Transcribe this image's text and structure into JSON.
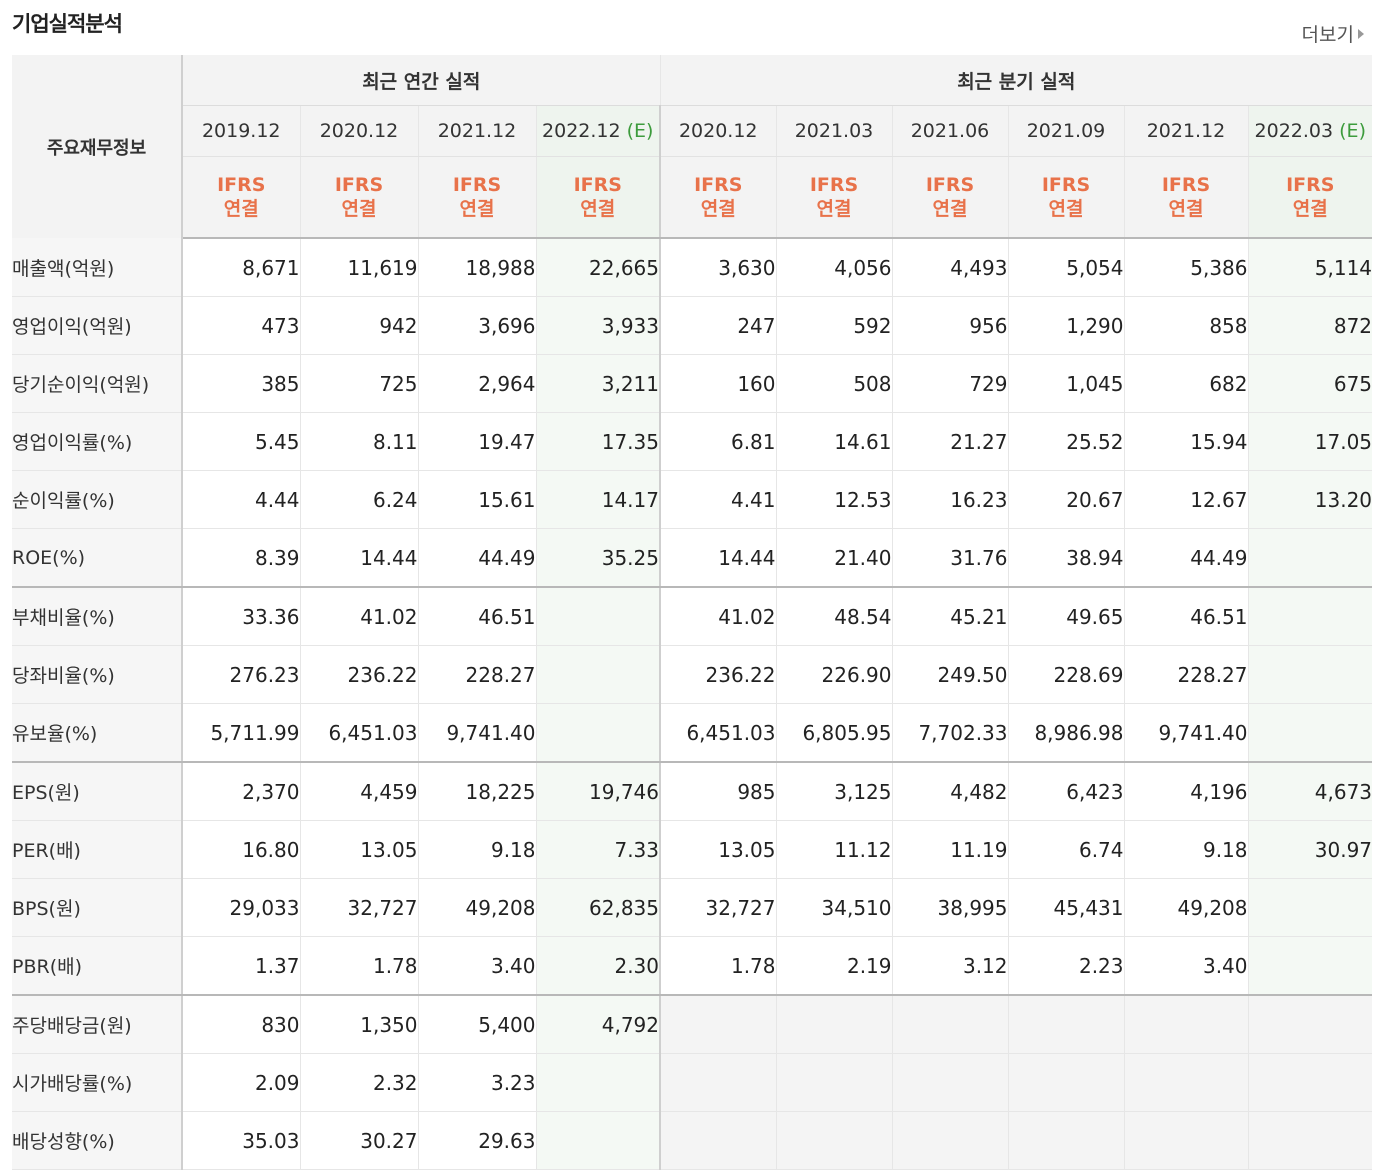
{
  "title": "기업실적분석",
  "more_label": "더보기",
  "row_header": "주요재무정보",
  "groups": {
    "annual": "최근 연간 실적",
    "quarter": "최근 분기 실적"
  },
  "estimate_mark": "(E)",
  "ifrs_line1": "IFRS",
  "ifrs_line2": "연결",
  "periods": [
    {
      "date": "2019.12",
      "est": false
    },
    {
      "date": "2020.12",
      "est": false
    },
    {
      "date": "2021.12",
      "est": false
    },
    {
      "date": "2022.12",
      "est": true
    },
    {
      "date": "2020.12",
      "est": false
    },
    {
      "date": "2021.03",
      "est": false
    },
    {
      "date": "2021.06",
      "est": false
    },
    {
      "date": "2021.09",
      "est": false
    },
    {
      "date": "2021.12",
      "est": false
    },
    {
      "date": "2022.03",
      "est": true
    }
  ],
  "rows": [
    {
      "label": "매출액(억원)",
      "values": [
        "8,671",
        "11,619",
        "18,988",
        "22,665",
        "3,630",
        "4,056",
        "4,493",
        "5,054",
        "5,386",
        "5,114"
      ]
    },
    {
      "label": "영업이익(억원)",
      "values": [
        "473",
        "942",
        "3,696",
        "3,933",
        "247",
        "592",
        "956",
        "1,290",
        "858",
        "872"
      ]
    },
    {
      "label": "당기순이익(억원)",
      "values": [
        "385",
        "725",
        "2,964",
        "3,211",
        "160",
        "508",
        "729",
        "1,045",
        "682",
        "675"
      ]
    },
    {
      "label": "영업이익률(%)",
      "values": [
        "5.45",
        "8.11",
        "19.47",
        "17.35",
        "6.81",
        "14.61",
        "21.27",
        "25.52",
        "15.94",
        "17.05"
      ]
    },
    {
      "label": "순이익률(%)",
      "values": [
        "4.44",
        "6.24",
        "15.61",
        "14.17",
        "4.41",
        "12.53",
        "16.23",
        "20.67",
        "12.67",
        "13.20"
      ]
    },
    {
      "label": "ROE(%)",
      "values": [
        "8.39",
        "14.44",
        "44.49",
        "35.25",
        "14.44",
        "21.40",
        "31.76",
        "38.94",
        "44.49",
        ""
      ]
    },
    {
      "label": "부채비율(%)",
      "values": [
        "33.36",
        "41.02",
        "46.51",
        "",
        "41.02",
        "48.54",
        "45.21",
        "49.65",
        "46.51",
        ""
      ]
    },
    {
      "label": "당좌비율(%)",
      "values": [
        "276.23",
        "236.22",
        "228.27",
        "",
        "236.22",
        "226.90",
        "249.50",
        "228.69",
        "228.27",
        ""
      ]
    },
    {
      "label": "유보율(%)",
      "values": [
        "5,711.99",
        "6,451.03",
        "9,741.40",
        "",
        "6,451.03",
        "6,805.95",
        "7,702.33",
        "8,986.98",
        "9,741.40",
        ""
      ]
    },
    {
      "label": "EPS(원)",
      "values": [
        "2,370",
        "4,459",
        "18,225",
        "19,746",
        "985",
        "3,125",
        "4,482",
        "6,423",
        "4,196",
        "4,673"
      ]
    },
    {
      "label": "PER(배)",
      "values": [
        "16.80",
        "13.05",
        "9.18",
        "7.33",
        "13.05",
        "11.12",
        "11.19",
        "6.74",
        "9.18",
        "30.97"
      ]
    },
    {
      "label": "BPS(원)",
      "values": [
        "29,033",
        "32,727",
        "49,208",
        "62,835",
        "32,727",
        "34,510",
        "38,995",
        "45,431",
        "49,208",
        ""
      ]
    },
    {
      "label": "PBR(배)",
      "values": [
        "1.37",
        "1.78",
        "3.40",
        "2.30",
        "1.78",
        "2.19",
        "3.12",
        "2.23",
        "3.40",
        ""
      ]
    },
    {
      "label": "주당배당금(원)",
      "values": [
        "830",
        "1,350",
        "5,400",
        "4,792",
        "",
        "",
        "",
        "",
        "",
        ""
      ]
    },
    {
      "label": "시가배당률(%)",
      "values": [
        "2.09",
        "2.32",
        "3.23",
        "",
        "",
        "",
        "",
        "",
        "",
        ""
      ]
    },
    {
      "label": "배당성향(%)",
      "values": [
        "35.03",
        "30.27",
        "29.63",
        "",
        "",
        "",
        "",
        "",
        "",
        ""
      ]
    }
  ]
}
